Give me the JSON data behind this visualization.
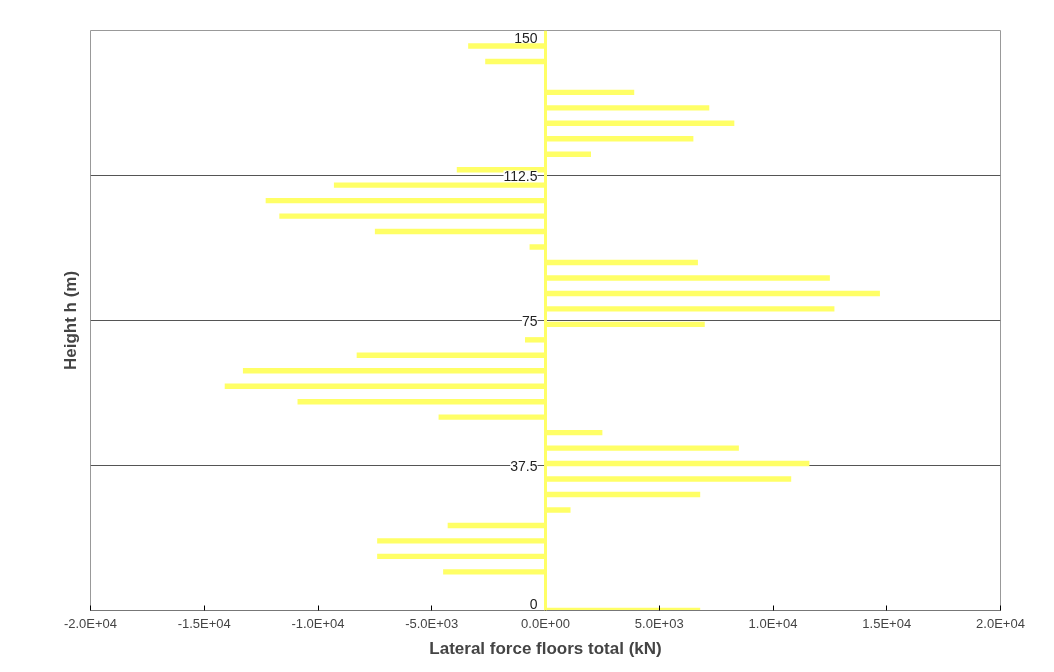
{
  "chart_data": {
    "type": "bar",
    "orientation": "horizontal",
    "xlabel": "Lateral force floors total (kN)",
    "ylabel": "Height h (m)",
    "x": [
      146,
      142,
      134,
      130,
      126,
      122,
      118,
      114,
      110,
      106,
      102,
      98,
      94,
      90,
      86,
      82,
      78,
      74,
      70,
      66,
      62,
      58,
      54,
      50,
      46,
      42,
      38,
      34,
      30,
      26,
      22,
      18,
      14,
      10,
      0
    ],
    "series": [
      {
        "color": "#ffff66",
        "values": [
          -3400,
          -2650,
          3900,
          7200,
          8300,
          6500,
          2000,
          -3900,
          -9300,
          -12300,
          -11700,
          -7500,
          -700,
          6700,
          12500,
          14700,
          12700,
          7000,
          -900,
          -8300,
          -13300,
          -14100,
          -10900,
          -4700,
          2500,
          8500,
          11600,
          10800,
          6800,
          1100,
          -4300,
          -7400,
          -7400,
          -4500,
          6800
        ]
      }
    ],
    "xlim": [
      -20000,
      20000
    ],
    "xticks": [
      {
        "value": -20000,
        "label": "-2.0E+04"
      },
      {
        "value": -15000,
        "label": "-1.5E+04"
      },
      {
        "value": -10000,
        "label": "-1.0E+04"
      },
      {
        "value": -5000,
        "label": "-5.0E+03"
      },
      {
        "value": 0,
        "label": "0.0E+00"
      },
      {
        "value": 5000,
        "label": "5.0E+03"
      },
      {
        "value": 10000,
        "label": "1.0E+04"
      },
      {
        "value": 15000,
        "label": "1.5E+04"
      },
      {
        "value": 20000,
        "label": "2.0E+04"
      }
    ],
    "ylim": [
      0,
      150
    ],
    "yticks": [
      0,
      37.5,
      75,
      112.5,
      150
    ],
    "grid": "y"
  }
}
